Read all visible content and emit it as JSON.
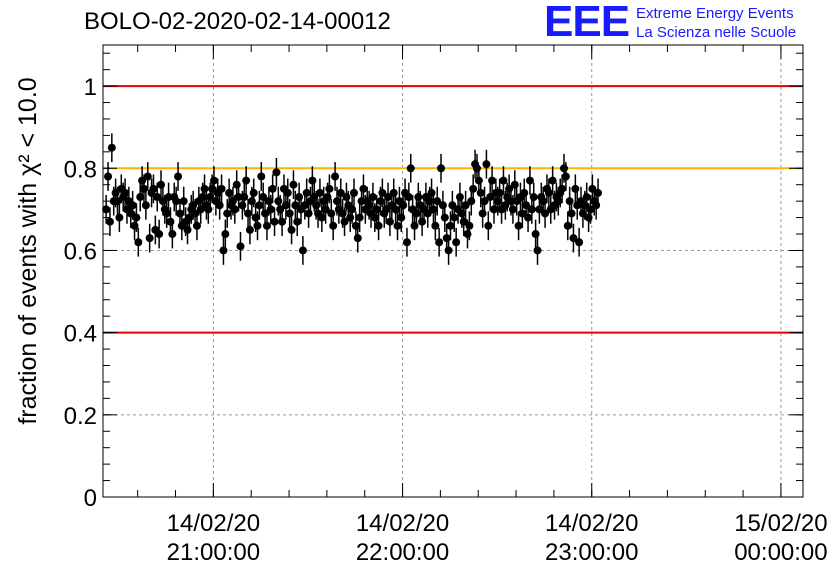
{
  "title": "BOLO-02-2020-02-14-00012",
  "logo": {
    "mark": "EEE",
    "line1": "Extreme Energy Events",
    "line2": "La Scienza nelle Scuole",
    "color": "#1a1aff"
  },
  "chart_data": {
    "type": "scatter",
    "title": "BOLO-02-2020-02-14-00012",
    "ylabel": "fraction of events with χ² < 10.0",
    "ylim": [
      0,
      1.1
    ],
    "yticks": [
      0,
      0.2,
      0.4,
      0.6,
      0.8,
      1
    ],
    "ytick_labels": [
      "0",
      "0.2",
      "0.4",
      "0.6",
      "0.8",
      "1"
    ],
    "xlim": [
      "2020-02-14 20:25",
      "2020-02-15 00:07"
    ],
    "xticks": [
      "2020-02-14 21:00",
      "2020-02-14 22:00",
      "2020-02-14 23:00",
      "2020-02-15 00:00"
    ],
    "xtick_labels": [
      [
        "14/02/20",
        "21:00:00"
      ],
      [
        "14/02/20",
        "22:00:00"
      ],
      [
        "14/02/20",
        "23:00:00"
      ],
      [
        "15/02/20",
        "00:00:00"
      ]
    ],
    "grid": true,
    "reference_lines": [
      {
        "y": 1.0,
        "color": "#e00000"
      },
      {
        "y": 0.4,
        "color": "#e00000"
      },
      {
        "y": 0.8,
        "color": "#ffb300"
      }
    ],
    "error_bar": 0.035,
    "series": [
      {
        "start": "2020-02-14 20:26",
        "interval_minutes": 0.6,
        "color": "#000000",
        "values": [
          0.7,
          0.78,
          0.67,
          0.85,
          0.72,
          0.74,
          0.72,
          0.68,
          0.75,
          0.73,
          0.74,
          0.7,
          0.72,
          0.69,
          0.71,
          0.66,
          0.68,
          0.62,
          0.73,
          0.77,
          0.75,
          0.71,
          0.78,
          0.63,
          0.74,
          0.75,
          0.65,
          0.73,
          0.64,
          0.76,
          0.72,
          0.7,
          0.69,
          0.73,
          0.67,
          0.64,
          0.73,
          0.72,
          0.78,
          0.69,
          0.66,
          0.72,
          0.67,
          0.65,
          0.68,
          0.7,
          0.71,
          0.69,
          0.66,
          0.72,
          0.7,
          0.73,
          0.75,
          0.71,
          0.7,
          0.73,
          0.75,
          0.77,
          0.72,
          0.74,
          0.71,
          0.75,
          0.6,
          0.64,
          0.69,
          0.74,
          0.71,
          0.72,
          0.7,
          0.76,
          0.73,
          0.61,
          0.71,
          0.73,
          0.77,
          0.69,
          0.65,
          0.72,
          0.74,
          0.68,
          0.66,
          0.71,
          0.78,
          0.73,
          0.69,
          0.66,
          0.72,
          0.7,
          0.75,
          0.67,
          0.79,
          0.72,
          0.7,
          0.67,
          0.75,
          0.71,
          0.74,
          0.69,
          0.65,
          0.76,
          0.71,
          0.67,
          0.73,
          0.7,
          0.6,
          0.71,
          0.74,
          0.69,
          0.72,
          0.77,
          0.73,
          0.71,
          0.69,
          0.74,
          0.68,
          0.72,
          0.7,
          0.73,
          0.75,
          0.69,
          0.66,
          0.78,
          0.72,
          0.7,
          0.74,
          0.69,
          0.67,
          0.73,
          0.71,
          0.68,
          0.7,
          0.74,
          0.66,
          0.63,
          0.68,
          0.72,
          0.75,
          0.7,
          0.72,
          0.71,
          0.69,
          0.73,
          0.68,
          0.7,
          0.66,
          0.72,
          0.74,
          0.69,
          0.7,
          0.73,
          0.67,
          0.71,
          0.74,
          0.7,
          0.66,
          0.72,
          0.68,
          0.71,
          0.74,
          0.62,
          0.73,
          0.8,
          0.7,
          0.66,
          0.69,
          0.73,
          0.71,
          0.67,
          0.7,
          0.73,
          0.69,
          0.72,
          0.74,
          0.7,
          0.66,
          0.72,
          0.62,
          0.8,
          0.71,
          0.68,
          0.63,
          0.6,
          0.66,
          0.71,
          0.68,
          0.62,
          0.7,
          0.73,
          0.69,
          0.67,
          0.71,
          0.64,
          0.66,
          0.72,
          0.75,
          0.81,
          0.8,
          0.77,
          0.74,
          0.69,
          0.72,
          0.81,
          0.66,
          0.73,
          0.77,
          0.7,
          0.74,
          0.72,
          0.74,
          0.7,
          0.77,
          0.71,
          0.73,
          0.75,
          0.72,
          0.7,
          0.76,
          0.72,
          0.66,
          0.73,
          0.69,
          0.74,
          0.71,
          0.68,
          0.77,
          0.7,
          0.73,
          0.64,
          0.6,
          0.7,
          0.73,
          0.72,
          0.69,
          0.75,
          0.74,
          0.7,
          0.77,
          0.71,
          0.73,
          0.72,
          0.74,
          0.75,
          0.8,
          0.78,
          0.66,
          0.72,
          0.69,
          0.63,
          0.75,
          0.71,
          0.62,
          0.72,
          0.69,
          0.71,
          0.73,
          0.68,
          0.7,
          0.75,
          0.72,
          0.71,
          0.74
        ]
      }
    ]
  }
}
